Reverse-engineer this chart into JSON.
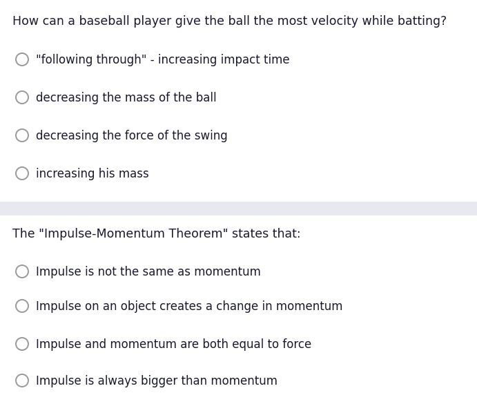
{
  "background_color": "#ffffff",
  "divider_color": "#e8e8f0",
  "question1": "How can a baseball player give the ball the most velocity while batting?",
  "question1_options": [
    "\"following through\" - increasing impact time",
    "decreasing the mass of the ball",
    "decreasing the force of the swing",
    "increasing his mass"
  ],
  "question2": "The \"Impulse-Momentum Theorem\" states that:",
  "question2_options": [
    "Impulse is not the same as momentum",
    "Impulse on an object creates a change in momentum",
    "Impulse and momentum are both equal to force",
    "Impulse is always bigger than momentum"
  ],
  "question_color": "#1a1a2e",
  "option_color": "#1a1a2e",
  "circle_edge_color": "#999999",
  "circle_face_color": "#ffffff",
  "question_fontsize": 12.5,
  "option_fontsize": 12.0,
  "fig_width": 6.91,
  "fig_height": 5.85,
  "dpi": 100
}
